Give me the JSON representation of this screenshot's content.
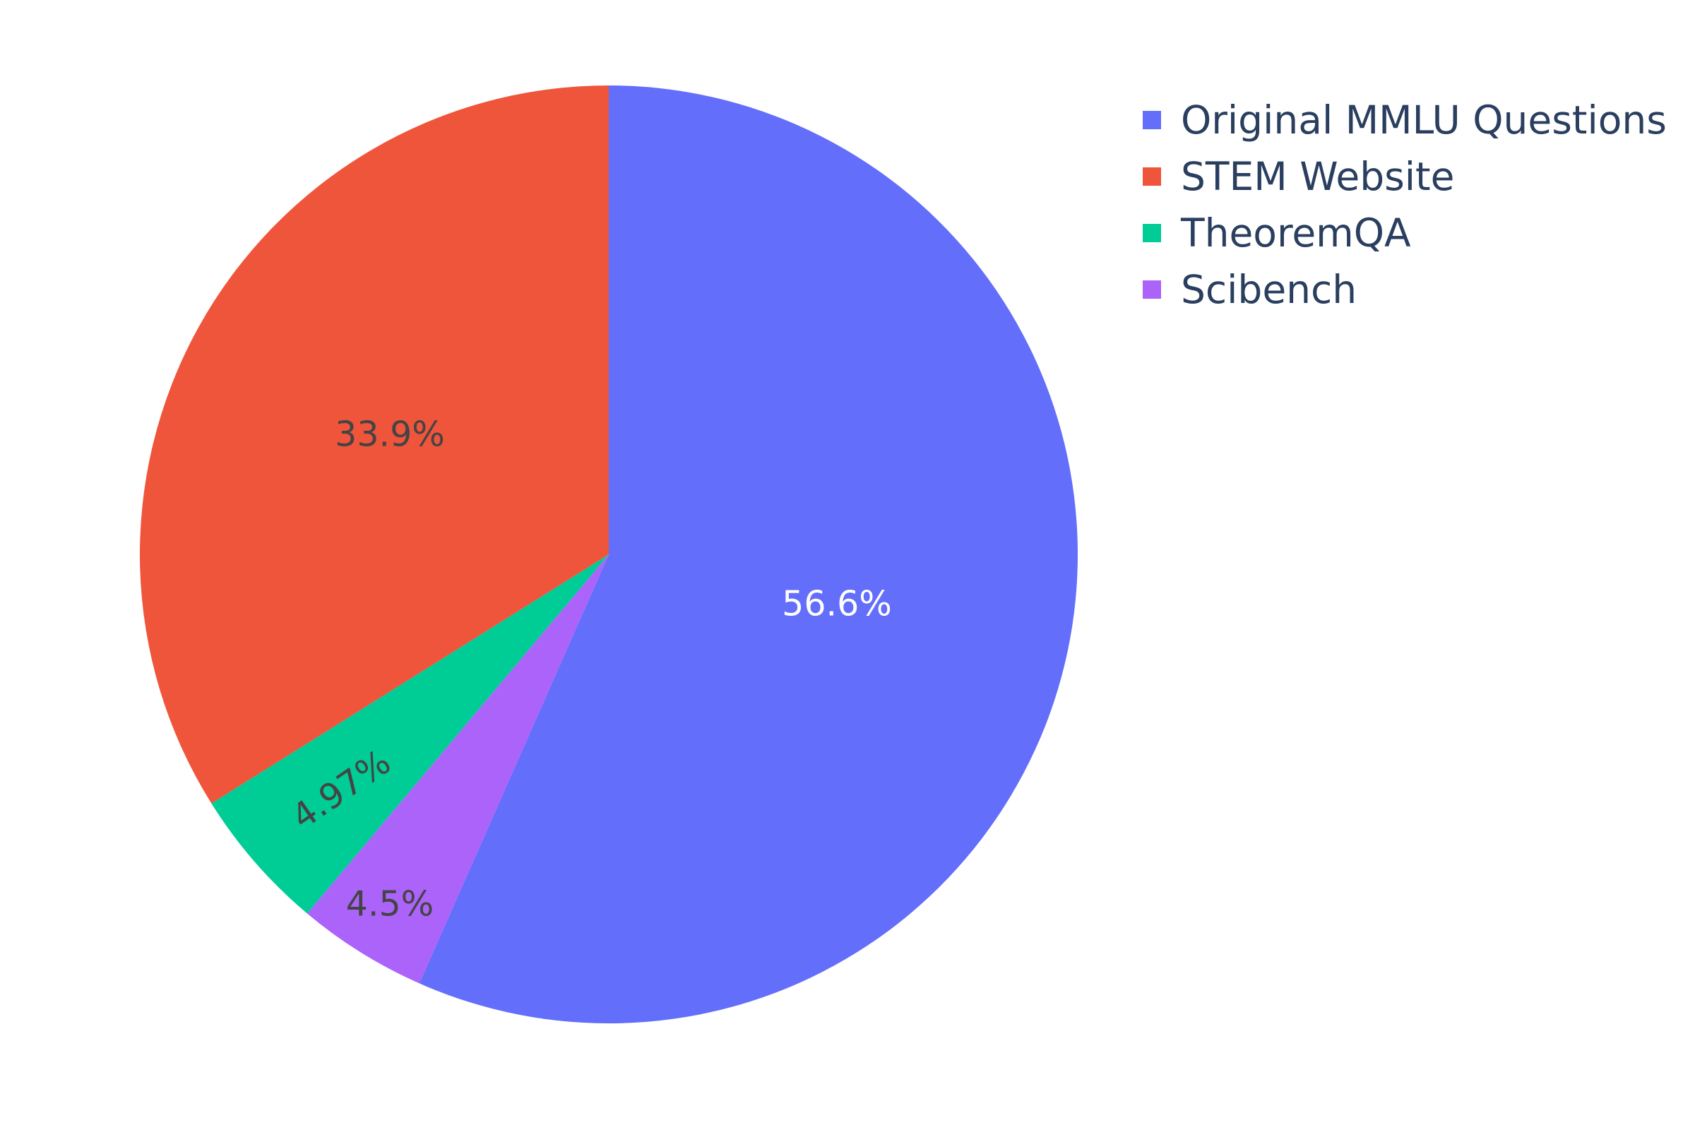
{
  "chart_data": {
    "type": "pie",
    "title": "",
    "direction": "clockwise",
    "start_angle_deg": 90,
    "legend_placement": "top-right",
    "slices": [
      {
        "label": "Original MMLU Questions",
        "value": 56.6,
        "text": "56.6%",
        "color": "#636efa",
        "text_color": "#ffffff",
        "text_rotated": false
      },
      {
        "label": "Scibench",
        "value": 4.5,
        "text": "4.5%",
        "color": "#ab63fa",
        "text_color": "#444444",
        "text_rotated": false
      },
      {
        "label": "TheoremQA",
        "value": 4.97,
        "text": "4.97%",
        "color": "#00cc96",
        "text_color": "#444444",
        "text_rotated": true
      },
      {
        "label": "STEM Website",
        "value": 33.9,
        "text": "33.9%",
        "color": "#ef553b",
        "text_color": "#444444",
        "text_rotated": false
      }
    ],
    "legend": [
      {
        "label": "Original MMLU Questions",
        "color": "#636efa"
      },
      {
        "label": "STEM Website",
        "color": "#ef553b"
      },
      {
        "label": "TheoremQA",
        "color": "#00cc96"
      },
      {
        "label": "Scibench",
        "color": "#ab63fa"
      }
    ]
  }
}
